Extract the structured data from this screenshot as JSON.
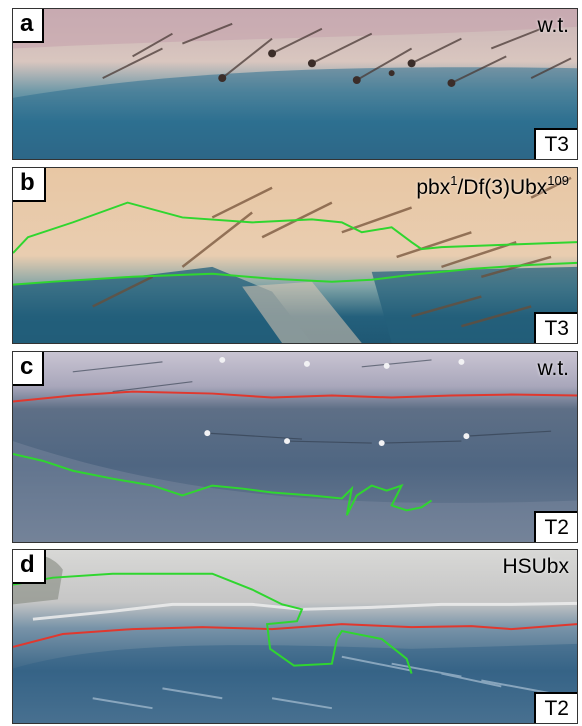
{
  "panels": [
    {
      "id": "a",
      "letter": "a",
      "genotype": "w.t.",
      "segment": "T3"
    },
    {
      "id": "b",
      "letter": "b",
      "genotype_main": "pbx",
      "genotype_sup1": "1",
      "genotype_mid": "/Df(3)Ubx",
      "genotype_sup2": "109",
      "segment": "T3"
    },
    {
      "id": "c",
      "letter": "c",
      "genotype": "w.t.",
      "segment": "T2"
    },
    {
      "id": "d",
      "letter": "d",
      "genotype": "HSUbx",
      "segment": "T2"
    }
  ],
  "colors": {
    "green_outline": "#2fd62f",
    "red_outline": "#e0382e",
    "stain_blue": "#2f6e8c",
    "cuticle_pale": "#e9d9c4"
  }
}
